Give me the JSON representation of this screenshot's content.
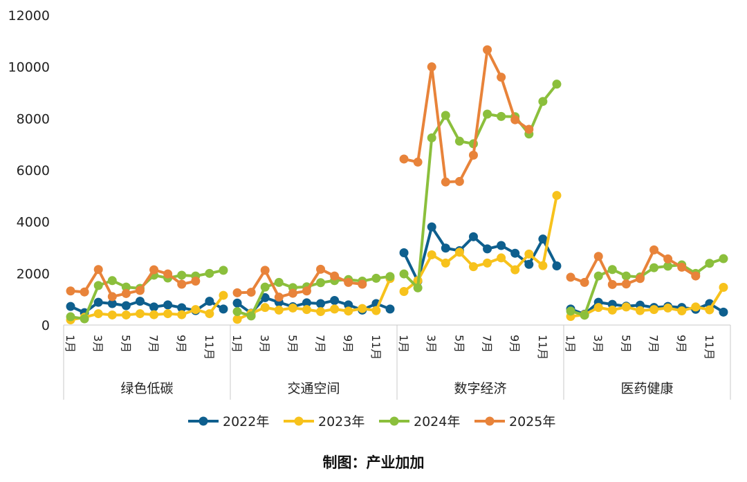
{
  "chart_data": {
    "type": "line",
    "ylim": [
      0,
      12000
    ],
    "yticks": [
      0,
      2000,
      4000,
      6000,
      8000,
      10000,
      12000
    ],
    "groups": [
      "绿色低碳",
      "交通空间",
      "数字经济",
      "医药健康"
    ],
    "months_per_group": 12,
    "month_labels": [
      "1月",
      "",
      "3月",
      "",
      "5月",
      "",
      "7月",
      "",
      "9月",
      "",
      "11月",
      ""
    ],
    "grid": false,
    "legend_position": "bottom",
    "series": [
      {
        "name": "2022年",
        "color": "#0e5f8e",
        "values": [
          [
            720,
            480,
            880,
            830,
            750,
            920,
            700,
            780,
            670,
            560,
            920,
            620
          ],
          [
            850,
            460,
            1060,
            880,
            710,
            860,
            830,
            950,
            780,
            580,
            830,
            620
          ],
          [
            2800,
            1700,
            3800,
            2980,
            2880,
            3420,
            2950,
            3080,
            2780,
            2350,
            3330,
            2290
          ],
          [
            620,
            420,
            880,
            800,
            730,
            770,
            680,
            720,
            680,
            610,
            830,
            500
          ]
        ]
      },
      {
        "name": "2023年",
        "color": "#f7c21c",
        "values": [
          [
            200,
            300,
            440,
            390,
            390,
            440,
            400,
            440,
            400,
            600,
            440,
            1150
          ],
          [
            220,
            450,
            680,
            580,
            660,
            600,
            520,
            620,
            540,
            640,
            560,
            1800
          ],
          [
            1300,
            1720,
            2720,
            2400,
            2820,
            2260,
            2400,
            2600,
            2140,
            2750,
            2300,
            5020
          ],
          [
            330,
            400,
            680,
            580,
            700,
            560,
            600,
            660,
            550,
            700,
            590,
            1460
          ]
        ]
      },
      {
        "name": "2024年",
        "color": "#8bbf3c",
        "values": [
          [
            320,
            240,
            1530,
            1720,
            1470,
            1420,
            1930,
            1820,
            1930,
            1900,
            2000,
            2120
          ],
          [
            520,
            350,
            1470,
            1650,
            1450,
            1480,
            1640,
            1720,
            1760,
            1700,
            1810,
            1880
          ],
          [
            1980,
            1440,
            7250,
            8120,
            7120,
            7020,
            8170,
            8080,
            8070,
            7400,
            8660,
            9330
          ],
          [
            540,
            380,
            1900,
            2150,
            1900,
            1860,
            2220,
            2280,
            2330,
            2000,
            2390,
            2570
          ]
        ]
      },
      {
        "name": "2025年",
        "color": "#e8833a",
        "values": [
          [
            1320,
            1280,
            2150,
            1100,
            1220,
            1340,
            2140,
            1980,
            1580,
            1700
          ],
          [
            1250,
            1270,
            2120,
            1080,
            1230,
            1320,
            2160,
            1900,
            1650,
            1580
          ],
          [
            6430,
            6310,
            10000,
            5540,
            5560,
            6580,
            10660,
            9600,
            7950,
            7580
          ],
          [
            1850,
            1650,
            2660,
            1570,
            1590,
            1800,
            2910,
            2560,
            2240,
            1900
          ]
        ]
      }
    ]
  },
  "credit": "制图：产业加加"
}
